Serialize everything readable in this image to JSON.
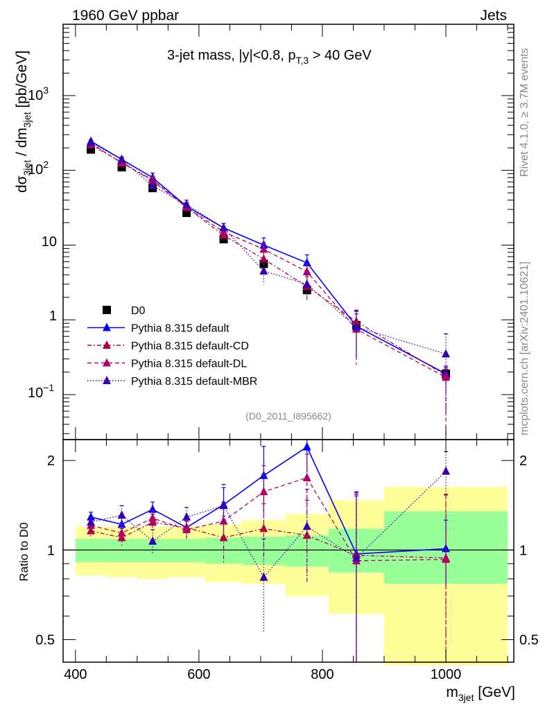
{
  "header": {
    "left": "1960 GeV ppbar",
    "right": "Jets"
  },
  "side_labels": {
    "rivet": "Rivet 4.1.0, ≥ 3.7M events",
    "mcplots": "mcplots.cern.ch [arXiv:2401.10621]"
  },
  "colors": {
    "data": "#000000",
    "default": "#0000ff",
    "cd": "#b30047",
    "dl": "#b3006b",
    "mbr": "#3300b3",
    "band_inner": "#99ff99",
    "band_outer": "#ffff99"
  },
  "chart_data": [
    {
      "type": "scatter",
      "panel": "main",
      "title": "3-jet mass, |y|<0.8, p_T,3 > 40 GeV",
      "title_parts": {
        "main": "3-jet mass, |y|<0.8, p",
        "sub": "T,3",
        "tail": " > 40 GeV"
      },
      "analysis_id": "(D0_2011_I895662)",
      "ylabel": "dσ_3jet / dm_3jet [pb/GeV]",
      "ylabel_parts": {
        "a": "dσ",
        "sub1": "3jet",
        "b": " / dm",
        "sub2": "3jet",
        "c": " [pb/GeV]"
      },
      "yscale": "log",
      "xlim": [
        380,
        1110
      ],
      "ylim": [
        0.025,
        9000
      ],
      "ytick_labels": {
        "t3": "10",
        "t3e": "3",
        "t2": "10",
        "t2e": "2",
        "t1": "10",
        "t0": "1",
        "tm1": "10",
        "tm1e": "−1"
      },
      "legend": {
        "placement": "lower-left",
        "entries": [
          "D0",
          "Pythia 8.315 default",
          "Pythia 8.315 default-CD",
          "Pythia 8.315 default-DL",
          "Pythia 8.315 default-MBR"
        ]
      },
      "series": [
        {
          "name": "D0",
          "style": "marker",
          "x": [
            425,
            475,
            525,
            580,
            640,
            705,
            775,
            855,
            1000
          ],
          "y": [
            190,
            110,
            58,
            27,
            12,
            5.6,
            2.5,
            0.85,
            0.19
          ]
        },
        {
          "name": "Pythia 8.315 default",
          "style": "solid",
          "x": [
            425,
            475,
            525,
            580,
            640,
            705,
            775,
            855,
            1000
          ],
          "y": [
            245,
            140,
            80,
            33,
            17,
            10,
            5.8,
            0.82,
            0.19
          ],
          "err_up": [
            10,
            10,
            12,
            4,
            2.5,
            2.5,
            1.6,
            0.5,
            0.05
          ],
          "err_down": [
            10,
            10,
            12,
            4,
            2.5,
            2.5,
            1.6,
            0.5,
            0.05
          ]
        },
        {
          "name": "Pythia 8.315 default-CD",
          "style": "dashdot",
          "x": [
            425,
            475,
            525,
            580,
            640,
            705,
            775,
            855,
            1000
          ],
          "y": [
            220,
            128,
            72,
            32,
            13.5,
            6.5,
            2.8,
            0.95,
            0.18
          ],
          "err_up": [
            10,
            10,
            8,
            4,
            2,
            1.6,
            1.0,
            0.4,
            0.05
          ],
          "err_down": [
            10,
            10,
            8,
            4,
            2,
            1.6,
            1.0,
            0.4,
            0.12
          ]
        },
        {
          "name": "Pythia 8.315 default-DL",
          "style": "dashed",
          "x": [
            425,
            475,
            525,
            580,
            640,
            705,
            775,
            855,
            1000
          ],
          "y": [
            230,
            125,
            75,
            32,
            15,
            8.8,
            4.4,
            0.75,
            0.17
          ],
          "err_up": [
            10,
            10,
            8,
            4,
            2,
            2,
            1.2,
            0.45,
            0.05
          ],
          "err_down": [
            10,
            10,
            8,
            4,
            2,
            2,
            1.2,
            0.5,
            0.15
          ]
        },
        {
          "name": "Pythia 8.315 default-MBR",
          "style": "dotted",
          "x": [
            425,
            475,
            525,
            580,
            640,
            705,
            775,
            855,
            1000
          ],
          "y": [
            235,
            140,
            62,
            35,
            17,
            4.5,
            3.0,
            0.8,
            0.35
          ],
          "err_up": [
            10,
            10,
            12,
            5,
            2.5,
            1.5,
            1.0,
            0.5,
            0.3
          ],
          "err_down": [
            10,
            10,
            12,
            5,
            2.5,
            1.5,
            1.0,
            0.5,
            0.3
          ]
        }
      ]
    },
    {
      "type": "scatter",
      "panel": "ratio",
      "ylabel": "Ratio to D0",
      "xlabel": "m_3jet [GeV]",
      "xlabel_parts": {
        "a": "m",
        "sub": "3jet",
        "b": " [GeV]"
      },
      "yscale": "log",
      "xlim": [
        380,
        1110
      ],
      "ylim": [
        0.42,
        2.35
      ],
      "xticks": [
        400,
        600,
        800,
        1000
      ],
      "xtick_labels": [
        "400",
        "600",
        "800",
        "1000"
      ],
      "yticks": [
        0.5,
        1,
        2
      ],
      "ytick_labels": [
        "0.5",
        "1",
        "2"
      ],
      "bands": {
        "edges": [
          400,
          450,
          500,
          550,
          610,
          670,
          740,
          810,
          900,
          1100
        ],
        "inner_lo": [
          0.91,
          0.91,
          0.91,
          0.91,
          0.9,
          0.89,
          0.88,
          0.84,
          0.77
        ],
        "inner_hi": [
          1.09,
          1.09,
          1.09,
          1.09,
          1.1,
          1.11,
          1.12,
          1.18,
          1.35
        ],
        "outer_lo": [
          0.82,
          0.81,
          0.8,
          0.81,
          0.78,
          0.77,
          0.7,
          0.61,
          0.41
        ],
        "outer_hi": [
          1.2,
          1.2,
          1.2,
          1.2,
          1.22,
          1.26,
          1.32,
          1.47,
          1.63
        ]
      },
      "series": [
        {
          "name": "Pythia 8.315 default",
          "style": "solid",
          "x": [
            425,
            475,
            525,
            580,
            640,
            705,
            775,
            855,
            1000
          ],
          "y": [
            1.29,
            1.22,
            1.37,
            1.19,
            1.42,
            1.78,
            2.22,
            0.97,
            1.01
          ],
          "err": [
            0.05,
            0.06,
            0.08,
            0.06,
            0.2,
            0.45,
            0.4,
            0.6,
            0.25
          ]
        },
        {
          "name": "Pythia 8.315 default-CD",
          "style": "dashdot",
          "x": [
            425,
            475,
            525,
            580,
            640,
            705,
            775,
            855,
            1000
          ],
          "y": [
            1.16,
            1.1,
            1.24,
            1.19,
            1.1,
            1.18,
            1.12,
            0.96,
            0.94
          ],
          "err": [
            0.05,
            0.08,
            0.08,
            0.08,
            0.2,
            0.25,
            0.35,
            0.6,
            0.6
          ]
        },
        {
          "name": "Pythia 8.315 default-DL",
          "style": "dashed",
          "x": [
            425,
            475,
            525,
            580,
            640,
            705,
            775,
            855,
            1000
          ],
          "y": [
            1.21,
            1.14,
            1.28,
            1.17,
            1.25,
            1.57,
            1.75,
            0.92,
            0.93
          ],
          "err": [
            0.05,
            0.08,
            0.08,
            0.08,
            0.2,
            0.35,
            0.35,
            0.6,
            0.6
          ]
        },
        {
          "name": "Pythia 8.315 default-MBR",
          "style": "dotted",
          "x": [
            425,
            475,
            525,
            580,
            640,
            705,
            775,
            855,
            1000
          ],
          "y": [
            1.24,
            1.31,
            1.07,
            1.29,
            1.41,
            0.81,
            1.2,
            0.94,
            1.84
          ],
          "err": [
            0.05,
            0.1,
            0.1,
            0.1,
            0.25,
            0.28,
            0.4,
            0.6,
            0.3
          ]
        }
      ]
    }
  ]
}
